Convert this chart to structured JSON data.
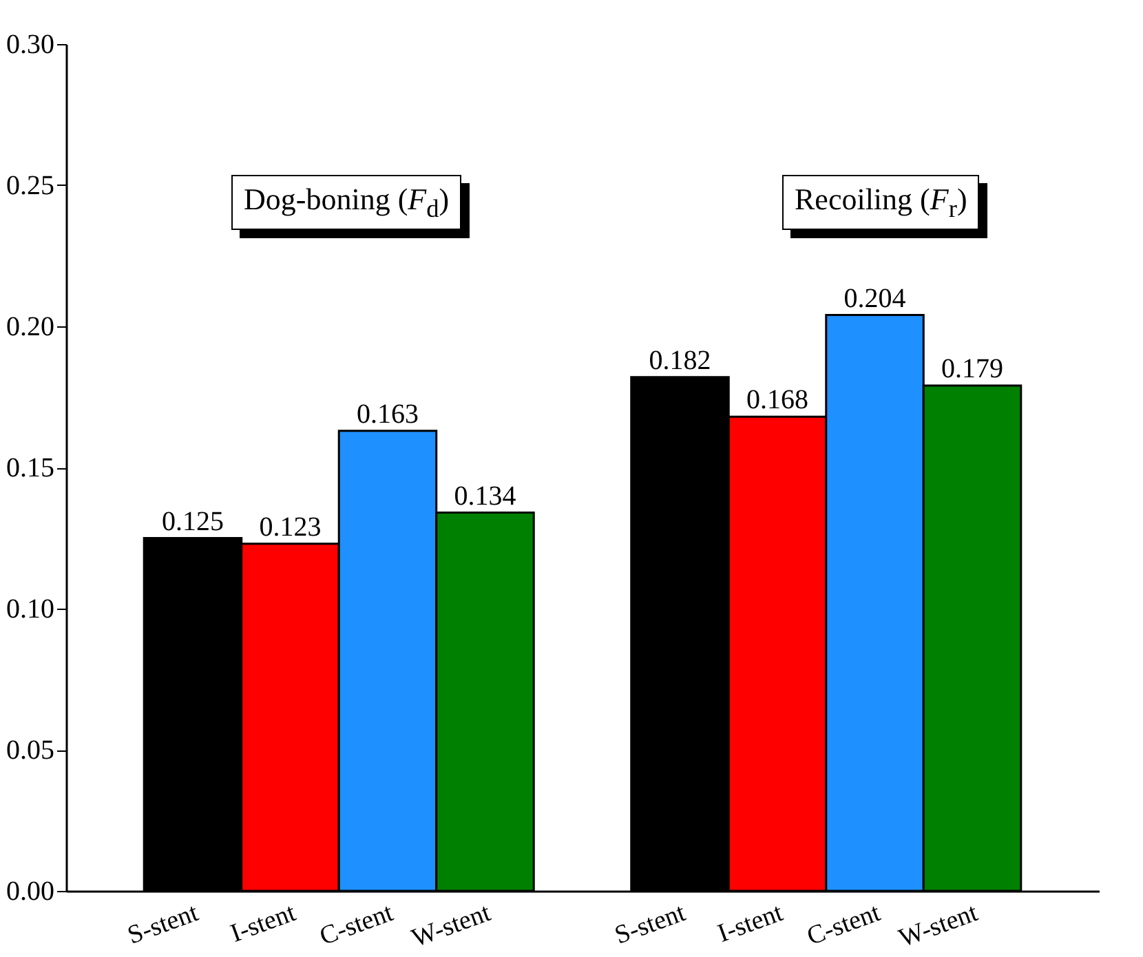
{
  "chart_data": {
    "type": "bar",
    "categories": [
      "S-stent",
      "I-stent",
      "C-stent",
      "W-stent",
      null,
      "S-stent",
      "I-stent",
      "C-stent",
      "W-stent"
    ],
    "values": [
      0.125,
      0.123,
      0.163,
      0.134,
      null,
      0.182,
      0.168,
      0.204,
      0.179
    ],
    "colors": [
      "#000000",
      "#ff0000",
      "#1e90ff",
      "#008000",
      "#ffffff",
      "#000000",
      "#ff0000",
      "#1e90ff",
      "#008000"
    ],
    "ylim": [
      0,
      0.3
    ],
    "yticks": [
      {
        "value": 0,
        "label": "0.00"
      },
      0.05,
      {
        "value": 0.1,
        "label": "0.10"
      },
      0.15,
      {
        "value": 0.2,
        "label": "0.20"
      },
      0.25,
      {
        "value": 0.3,
        "label": "0.30"
      }
    ],
    "data_labels": true,
    "grid": false,
    "legend": false,
    "annotations": [
      "Dog-boning (F$_{d}$)",
      "Recoiling (F$_{r}$)"
    ]
  }
}
